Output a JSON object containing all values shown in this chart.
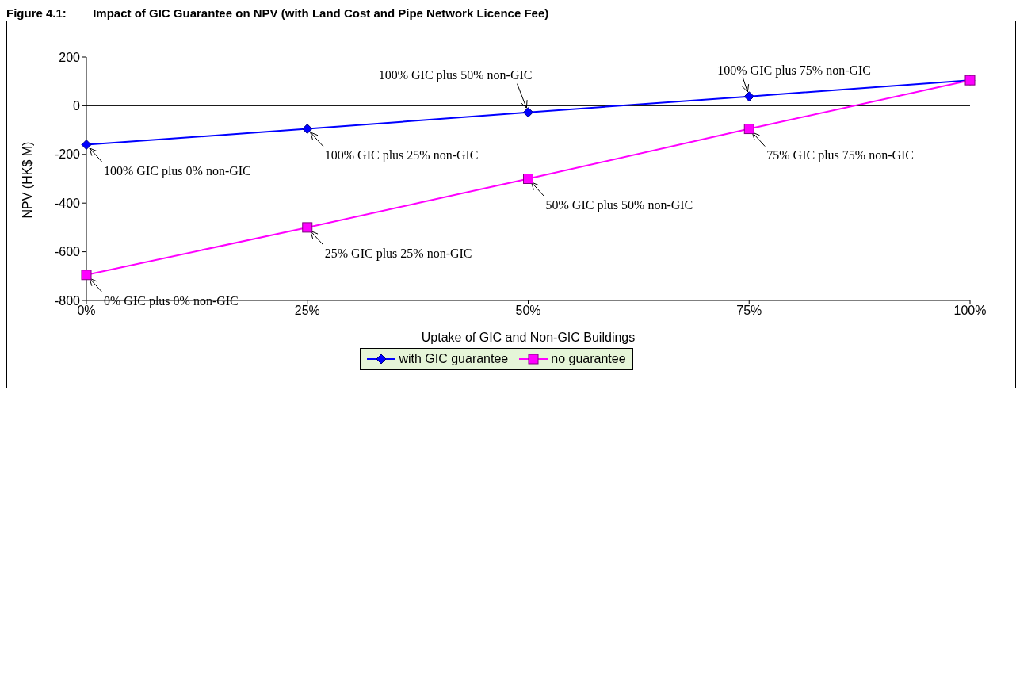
{
  "chart_data": {
    "type": "line",
    "title": "Figure 4.1:        Impact of GIC Guarantee on NPV (with Land Cost and Pipe Network Licence Fee)",
    "xlabel": "Uptake of GIC and Non-GIC Buildings",
    "ylabel": "NPV (HK$ M)",
    "x": [
      0,
      25,
      50,
      75,
      100
    ],
    "series": [
      {
        "name": "with GIC guarantee",
        "color": "#0000ff",
        "marker": "diamond",
        "values": [
          -160,
          -95,
          -27,
          38,
          105
        ]
      },
      {
        "name": "no guarantee",
        "color": "#ff00ff",
        "marker": "square",
        "values": [
          -695,
          -500,
          -300,
          -95,
          105
        ]
      }
    ],
    "xlim": [
      0,
      100
    ],
    "xticks": [
      {
        "value": 0,
        "label": "0%"
      },
      {
        "value": 25,
        "label": "25%"
      },
      {
        "value": 50,
        "label": "50%"
      },
      {
        "value": 75,
        "label": "75%"
      },
      {
        "value": 100,
        "label": "100%"
      }
    ],
    "ylim": [
      -800,
      200
    ],
    "yticks": [
      -800,
      -600,
      -400,
      -200,
      0,
      200
    ],
    "grid": false,
    "legend": "bottom",
    "line_style": "solid",
    "ref_lines": [
      {
        "axis": "y",
        "value": 0,
        "color": "#000000"
      }
    ],
    "annotations": [
      {
        "text": "100% GIC plus 0% non-GIC",
        "x": 0,
        "y": -160
      },
      {
        "text": "100% GIC plus 25% non-GIC",
        "x": 25,
        "y": -95
      },
      {
        "text": "100% GIC plus 50% non-GIC",
        "x": 50,
        "y": -27
      },
      {
        "text": "100% GIC plus 75% non-GIC",
        "x": 75,
        "y": 38
      },
      {
        "text": "0% GIC plus 0% non-GIC",
        "x": 0,
        "y": -695
      },
      {
        "text": "25% GIC plus 25% non-GIC",
        "x": 25,
        "y": -500
      },
      {
        "text": "50% GIC plus 50% non-GIC",
        "x": 50,
        "y": -300
      },
      {
        "text": "75% GIC plus 75% non-GIC",
        "x": 75,
        "y": -95
      }
    ]
  }
}
